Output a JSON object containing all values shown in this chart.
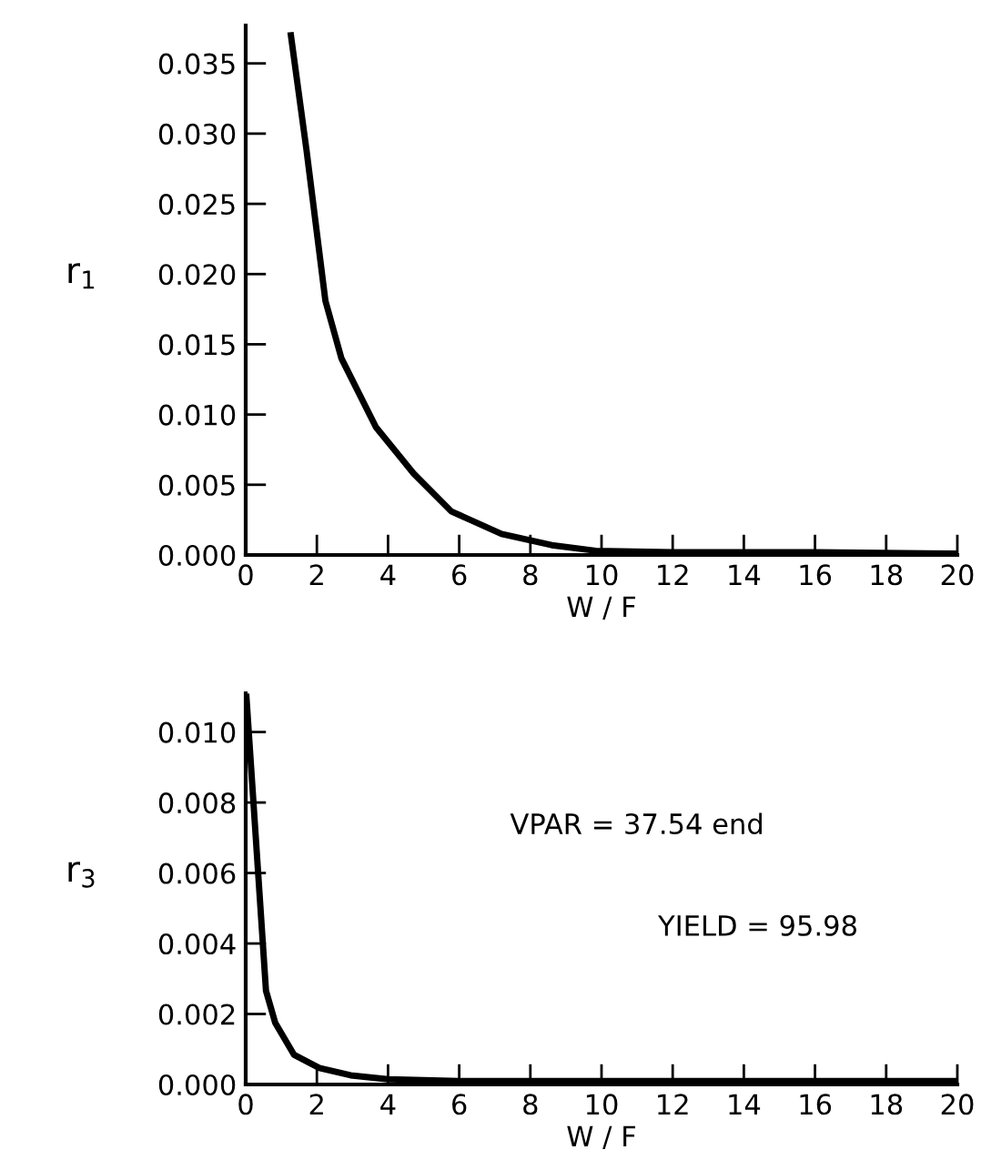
{
  "chart_data": [
    {
      "type": "line",
      "xlabel": "W / F",
      "ylabel": "r$_{1}$",
      "xlim": [
        0,
        20
      ],
      "ylim": [
        0,
        0.0377
      ],
      "xticks": [
        0,
        2,
        4,
        6,
        8,
        10,
        12,
        14,
        16,
        18,
        20
      ],
      "yticks": [
        {
          "value": 0,
          "label": "0.000"
        },
        {
          "value": 0.005,
          "label": "0.005"
        },
        {
          "value": 0.01,
          "label": "0.010"
        },
        {
          "value": 0.015,
          "label": "0.015"
        },
        {
          "value": 0.02,
          "label": "0.020"
        },
        {
          "value": 0.025,
          "label": "0.025"
        },
        {
          "value": 0.03,
          "label": "0.030"
        },
        {
          "value": 0.035,
          "label": "0.035"
        }
      ],
      "grid": false,
      "legend": false,
      "series": [
        {
          "color": "#000000",
          "x": [
            1.27,
            1.71,
            2.24,
            2.69,
            3.66,
            4.72,
            5.78,
            7.19,
            8.6,
            9.84,
            12,
            16,
            20
          ],
          "values": [
            0.037,
            0.0288,
            0.0181,
            0.014,
            0.0091,
            0.0058,
            0.0031,
            0.0015,
            0.0007,
            0.0003,
            0.0002,
            0.0002,
            0.0001
          ]
        }
      ]
    },
    {
      "type": "line",
      "xlabel": "W / F",
      "ylabel": "r$_{3}$",
      "xlim": [
        0,
        20
      ],
      "ylim": [
        0,
        0.0111
      ],
      "xticks": [
        0,
        2,
        4,
        6,
        8,
        10,
        12,
        14,
        16,
        18,
        20
      ],
      "yticks": [
        {
          "value": 0,
          "label": "0.000"
        },
        {
          "value": 0.002,
          "label": "0.002"
        },
        {
          "value": 0.004,
          "label": "0.004"
        },
        {
          "value": 0.006,
          "label": "0.006"
        },
        {
          "value": 0.008,
          "label": "0.008"
        },
        {
          "value": 0.01,
          "label": "0.010"
        }
      ],
      "grid": false,
      "legend": false,
      "annotations": [
        "VPAR = 37.54 end",
        "YIELD = 95.98"
      ],
      "series": [
        {
          "color": "#000000",
          "x": [
            0.02,
            0.57,
            0.83,
            1.36,
            2.07,
            2.95,
            4.0,
            6.0,
            10,
            20
          ],
          "values": [
            0.011,
            0.00266,
            0.00175,
            0.00084,
            0.00047,
            0.00026,
            0.00015,
            0.0001,
            0.0001,
            0.0001
          ]
        }
      ]
    }
  ]
}
